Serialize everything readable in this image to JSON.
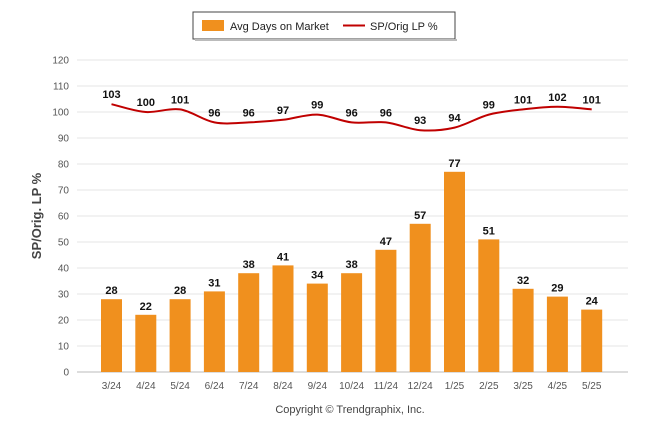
{
  "chart_data": {
    "type": "bar",
    "categories": [
      "3/24",
      "4/24",
      "5/24",
      "6/24",
      "7/24",
      "8/24",
      "9/24",
      "10/24",
      "11/24",
      "12/24",
      "1/25",
      "2/25",
      "3/25",
      "4/25",
      "5/25"
    ],
    "series": [
      {
        "name": "Avg Days on Market",
        "type": "bar",
        "color": "#F0901E",
        "values": [
          28,
          22,
          28,
          31,
          38,
          41,
          34,
          38,
          47,
          57,
          77,
          51,
          32,
          29,
          24
        ]
      },
      {
        "name": "SP/Orig LP %",
        "type": "line",
        "color": "#C00000",
        "values": [
          103,
          100,
          101,
          96,
          96,
          97,
          99,
          96,
          96,
          93,
          94,
          99,
          101,
          102,
          101
        ]
      }
    ],
    "ylabel": "SP/Orig. LP %",
    "ylim": [
      0,
      120
    ],
    "yticks": [
      0,
      10,
      20,
      30,
      40,
      50,
      60,
      70,
      80,
      90,
      100,
      110,
      120
    ],
    "grid": true,
    "legend_position": "top-center"
  },
  "footer": {
    "copyright": "Copyright © Trendgraphix, Inc."
  }
}
